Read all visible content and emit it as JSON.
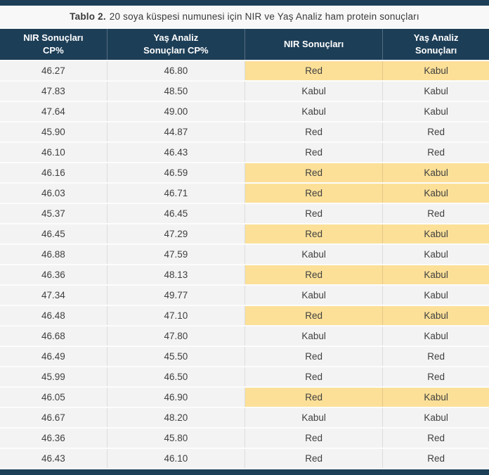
{
  "page": {
    "title_label": "Tablo 2.",
    "title_text": "20 soya küspesi numunesi için NIR ve Yaş Analiz ham protein sonuçları"
  },
  "colors": {
    "navy": "#1d3e57",
    "highlight_yellow": "#fce098",
    "row_gray": "#f3f3f4"
  },
  "table": {
    "columns": [
      {
        "id": "nir_cp",
        "lines": [
          "NIR Sonuçları",
          "CP%"
        ]
      },
      {
        "id": "wet_cp",
        "lines": [
          "Yaş Analiz",
          "Sonuçları CP%"
        ]
      },
      {
        "id": "nir_result",
        "lines": [
          "NIR Sonuçları"
        ]
      },
      {
        "id": "wet_result",
        "lines": [
          "Yaş Analiz",
          "Sonuçları"
        ]
      }
    ],
    "rows": [
      {
        "nir_cp": "46.27",
        "wet_cp": "46.80",
        "nir_result": "Red",
        "wet_result": "Kabul",
        "highlight": true
      },
      {
        "nir_cp": "47.83",
        "wet_cp": "48.50",
        "nir_result": "Kabul",
        "wet_result": "Kabul",
        "highlight": false
      },
      {
        "nir_cp": "47.64",
        "wet_cp": "49.00",
        "nir_result": "Kabul",
        "wet_result": "Kabul",
        "highlight": false
      },
      {
        "nir_cp": "45.90",
        "wet_cp": "44.87",
        "nir_result": "Red",
        "wet_result": "Red",
        "highlight": false
      },
      {
        "nir_cp": "46.10",
        "wet_cp": "46.43",
        "nir_result": "Red",
        "wet_result": "Red",
        "highlight": false
      },
      {
        "nir_cp": "46.16",
        "wet_cp": "46.59",
        "nir_result": "Red",
        "wet_result": "Kabul",
        "highlight": true
      },
      {
        "nir_cp": "46.03",
        "wet_cp": "46.71",
        "nir_result": "Red",
        "wet_result": "Kabul",
        "highlight": true
      },
      {
        "nir_cp": "45.37",
        "wet_cp": "46.45",
        "nir_result": "Red",
        "wet_result": "Red",
        "highlight": false
      },
      {
        "nir_cp": "46.45",
        "wet_cp": "47.29",
        "nir_result": "Red",
        "wet_result": "Kabul",
        "highlight": true
      },
      {
        "nir_cp": "46.88",
        "wet_cp": "47.59",
        "nir_result": "Kabul",
        "wet_result": "Kabul",
        "highlight": false
      },
      {
        "nir_cp": "46.36",
        "wet_cp": "48.13",
        "nir_result": "Red",
        "wet_result": "Kabul",
        "highlight": true
      },
      {
        "nir_cp": "47.34",
        "wet_cp": "49.77",
        "nir_result": "Kabul",
        "wet_result": "Kabul",
        "highlight": false
      },
      {
        "nir_cp": "46.48",
        "wet_cp": "47.10",
        "nir_result": "Red",
        "wet_result": "Kabul",
        "highlight": true
      },
      {
        "nir_cp": "46.68",
        "wet_cp": "47.80",
        "nir_result": "Kabul",
        "wet_result": "Kabul",
        "highlight": false
      },
      {
        "nir_cp": "46.49",
        "wet_cp": "45.50",
        "nir_result": "Red",
        "wet_result": "Red",
        "highlight": false
      },
      {
        "nir_cp": "45.99",
        "wet_cp": "46.50",
        "nir_result": "Red",
        "wet_result": "Red",
        "highlight": false
      },
      {
        "nir_cp": "46.05",
        "wet_cp": "46.90",
        "nir_result": "Red",
        "wet_result": "Kabul",
        "highlight": true
      },
      {
        "nir_cp": "46.67",
        "wet_cp": "48.20",
        "nir_result": "Kabul",
        "wet_result": "Kabul",
        "highlight": false
      },
      {
        "nir_cp": "46.36",
        "wet_cp": "45.80",
        "nir_result": "Red",
        "wet_result": "Red",
        "highlight": false
      },
      {
        "nir_cp": "46.43",
        "wet_cp": "46.10",
        "nir_result": "Red",
        "wet_result": "Red",
        "highlight": false
      }
    ]
  }
}
